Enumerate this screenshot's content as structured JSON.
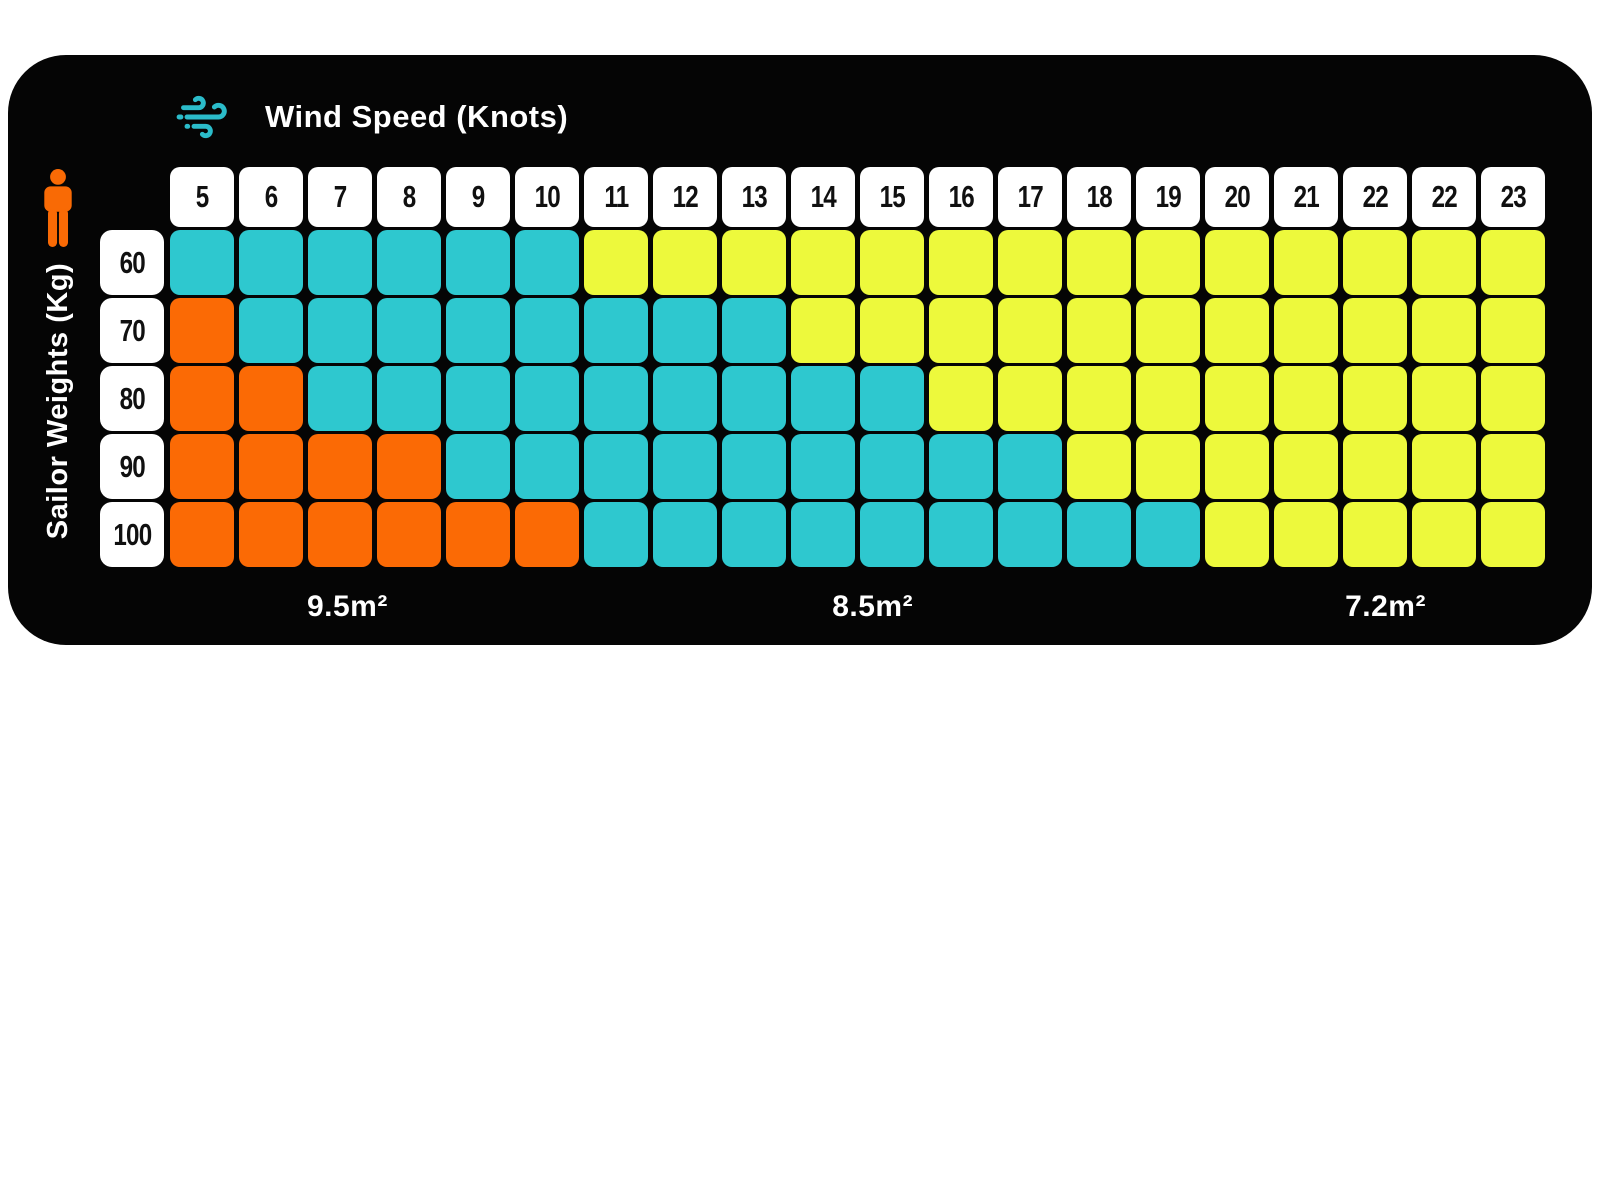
{
  "panel": {
    "title": "Wind Speed (Knots)",
    "y_axis_label": "Sailor Weights (Kg)"
  },
  "icons": {
    "wind_icon": "wind gust with swirls",
    "person_icon": "standing person pictogram"
  },
  "colors": {
    "panel_bg": "#050505",
    "page_bg": "#ffffff",
    "header_box_bg": "#ffffff",
    "header_text": "#101010",
    "title_text": "#ffffff",
    "wind_icon": "#2bbcca",
    "person_icon": "#f96a05"
  },
  "chart_data": {
    "type": "heatmap",
    "title": "Wind Speed (Knots)",
    "xlabel": "Wind Speed (Knots)",
    "ylabel": "Sailor Weights (Kg)",
    "x_tick_labels": [
      "5",
      "6",
      "7",
      "8",
      "9",
      "10",
      "11",
      "12",
      "13",
      "14",
      "15",
      "16",
      "17",
      "18",
      "19",
      "20",
      "21",
      "22",
      "22",
      "23"
    ],
    "y_tick_labels": [
      "60",
      "70",
      "80",
      "90",
      "100"
    ],
    "cell_colors": {
      "orange": "#fb6a05",
      "cyan": "#2ec8cf",
      "yellow": "#edf93c"
    },
    "rows": [
      {
        "weight": "60",
        "cells": [
          "cyan",
          "cyan",
          "cyan",
          "cyan",
          "cyan",
          "cyan",
          "yellow",
          "yellow",
          "yellow",
          "yellow",
          "yellow",
          "yellow",
          "yellow",
          "yellow",
          "yellow",
          "yellow",
          "yellow",
          "yellow",
          "yellow",
          "yellow"
        ]
      },
      {
        "weight": "70",
        "cells": [
          "orange",
          "cyan",
          "cyan",
          "cyan",
          "cyan",
          "cyan",
          "cyan",
          "cyan",
          "cyan",
          "yellow",
          "yellow",
          "yellow",
          "yellow",
          "yellow",
          "yellow",
          "yellow",
          "yellow",
          "yellow",
          "yellow",
          "yellow"
        ]
      },
      {
        "weight": "80",
        "cells": [
          "orange",
          "orange",
          "cyan",
          "cyan",
          "cyan",
          "cyan",
          "cyan",
          "cyan",
          "cyan",
          "cyan",
          "cyan",
          "yellow",
          "yellow",
          "yellow",
          "yellow",
          "yellow",
          "yellow",
          "yellow",
          "yellow",
          "yellow"
        ]
      },
      {
        "weight": "90",
        "cells": [
          "orange",
          "orange",
          "orange",
          "orange",
          "cyan",
          "cyan",
          "cyan",
          "cyan",
          "cyan",
          "cyan",
          "cyan",
          "cyan",
          "cyan",
          "yellow",
          "yellow",
          "yellow",
          "yellow",
          "yellow",
          "yellow",
          "yellow"
        ]
      },
      {
        "weight": "100",
        "cells": [
          "orange",
          "orange",
          "orange",
          "orange",
          "orange",
          "orange",
          "cyan",
          "cyan",
          "cyan",
          "cyan",
          "cyan",
          "cyan",
          "cyan",
          "cyan",
          "cyan",
          "yellow",
          "yellow",
          "yellow",
          "yellow",
          "yellow"
        ]
      }
    ],
    "sail_size_labels": [
      {
        "label": "9.5m²",
        "position_pct": 12.9
      },
      {
        "label": "8.5m²",
        "position_pct": 51.1
      },
      {
        "label": "7.2m²",
        "position_pct": 88.4
      }
    ]
  }
}
